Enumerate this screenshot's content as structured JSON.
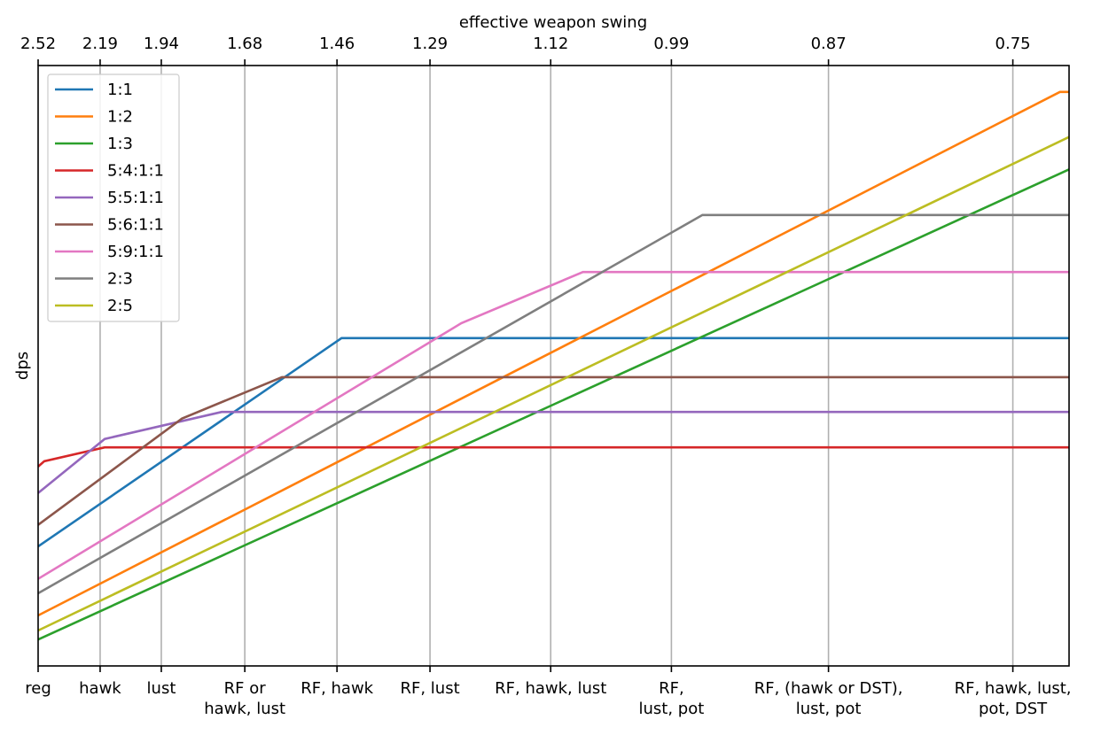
{
  "chart_data": {
    "type": "line",
    "title": "",
    "xlabel_top": "effective weapon swing",
    "ylabel": "dps",
    "xlim": [
      1,
      3.494
    ],
    "ylim": [
      0,
      100
    ],
    "grid": "vertical",
    "legend_position": "top-left",
    "x_ticks": [
      {
        "x": 1.0,
        "top": "2.52",
        "bottom": [
          "reg"
        ]
      },
      {
        "x": 1.15,
        "top": "2.19",
        "bottom": [
          "hawk"
        ]
      },
      {
        "x": 1.298,
        "top": "1.94",
        "bottom": [
          "lust"
        ]
      },
      {
        "x": 1.5,
        "top": "1.68",
        "bottom": [
          "RF or",
          "hawk, lust"
        ]
      },
      {
        "x": 1.723,
        "top": "1.46",
        "bottom": [
          "RF, hawk"
        ]
      },
      {
        "x": 1.948,
        "top": "1.29",
        "bottom": [
          "RF, lust"
        ]
      },
      {
        "x": 2.24,
        "top": "1.12",
        "bottom": [
          "RF, hawk, lust"
        ]
      },
      {
        "x": 2.532,
        "top": "0.99",
        "bottom": [
          "RF,",
          "lust, pot"
        ]
      },
      {
        "x": 2.912,
        "top": "0.87",
        "bottom": [
          "RF, (hawk or DST),",
          "lust, pot"
        ]
      },
      {
        "x": 3.358,
        "top": "0.75",
        "bottom": [
          "RF, hawk, lust,",
          "pot, DST"
        ]
      }
    ],
    "series": [
      {
        "name": "1:1",
        "color": "#1f77b4",
        "points": [
          [
            1,
            19.9
          ],
          [
            1.734,
            54.6
          ],
          [
            3.494,
            54.6
          ]
        ]
      },
      {
        "name": "1:2",
        "color": "#ff7f0e",
        "points": [
          [
            1,
            8.4
          ],
          [
            3.472,
            95.6
          ],
          [
            3.494,
            95.6
          ]
        ]
      },
      {
        "name": "1:3",
        "color": "#2ca02c",
        "points": [
          [
            1,
            4.4
          ],
          [
            3.494,
            82.7
          ]
        ]
      },
      {
        "name": "5:4:1:1",
        "color": "#d62728",
        "points": [
          [
            1,
            33.2
          ],
          [
            1.015,
            34.1
          ],
          [
            1.161,
            36.4
          ],
          [
            3.494,
            36.4
          ]
        ]
      },
      {
        "name": "5:5:1:1",
        "color": "#9467bd",
        "points": [
          [
            1,
            28.8
          ],
          [
            1.161,
            37.8
          ],
          [
            1.444,
            42.3
          ],
          [
            3.494,
            42.3
          ]
        ]
      },
      {
        "name": "5:6:1:1",
        "color": "#8c564b",
        "points": [
          [
            1,
            23.5
          ],
          [
            1.348,
            41.2
          ],
          [
            1.59,
            48.1
          ],
          [
            3.494,
            48.1
          ]
        ]
      },
      {
        "name": "5:9:1:1",
        "color": "#e377c2",
        "points": [
          [
            1,
            14.5
          ],
          [
            2.024,
            57.1
          ],
          [
            2.318,
            65.6
          ],
          [
            3.494,
            65.6
          ]
        ]
      },
      {
        "name": "2:3",
        "color": "#7f7f7f",
        "points": [
          [
            1,
            12.1
          ],
          [
            2.607,
            75.1
          ],
          [
            3.494,
            75.1
          ]
        ]
      },
      {
        "name": "2:5",
        "color": "#bcbd22",
        "points": [
          [
            1,
            5.9
          ],
          [
            3.494,
            88.1
          ]
        ]
      }
    ]
  }
}
